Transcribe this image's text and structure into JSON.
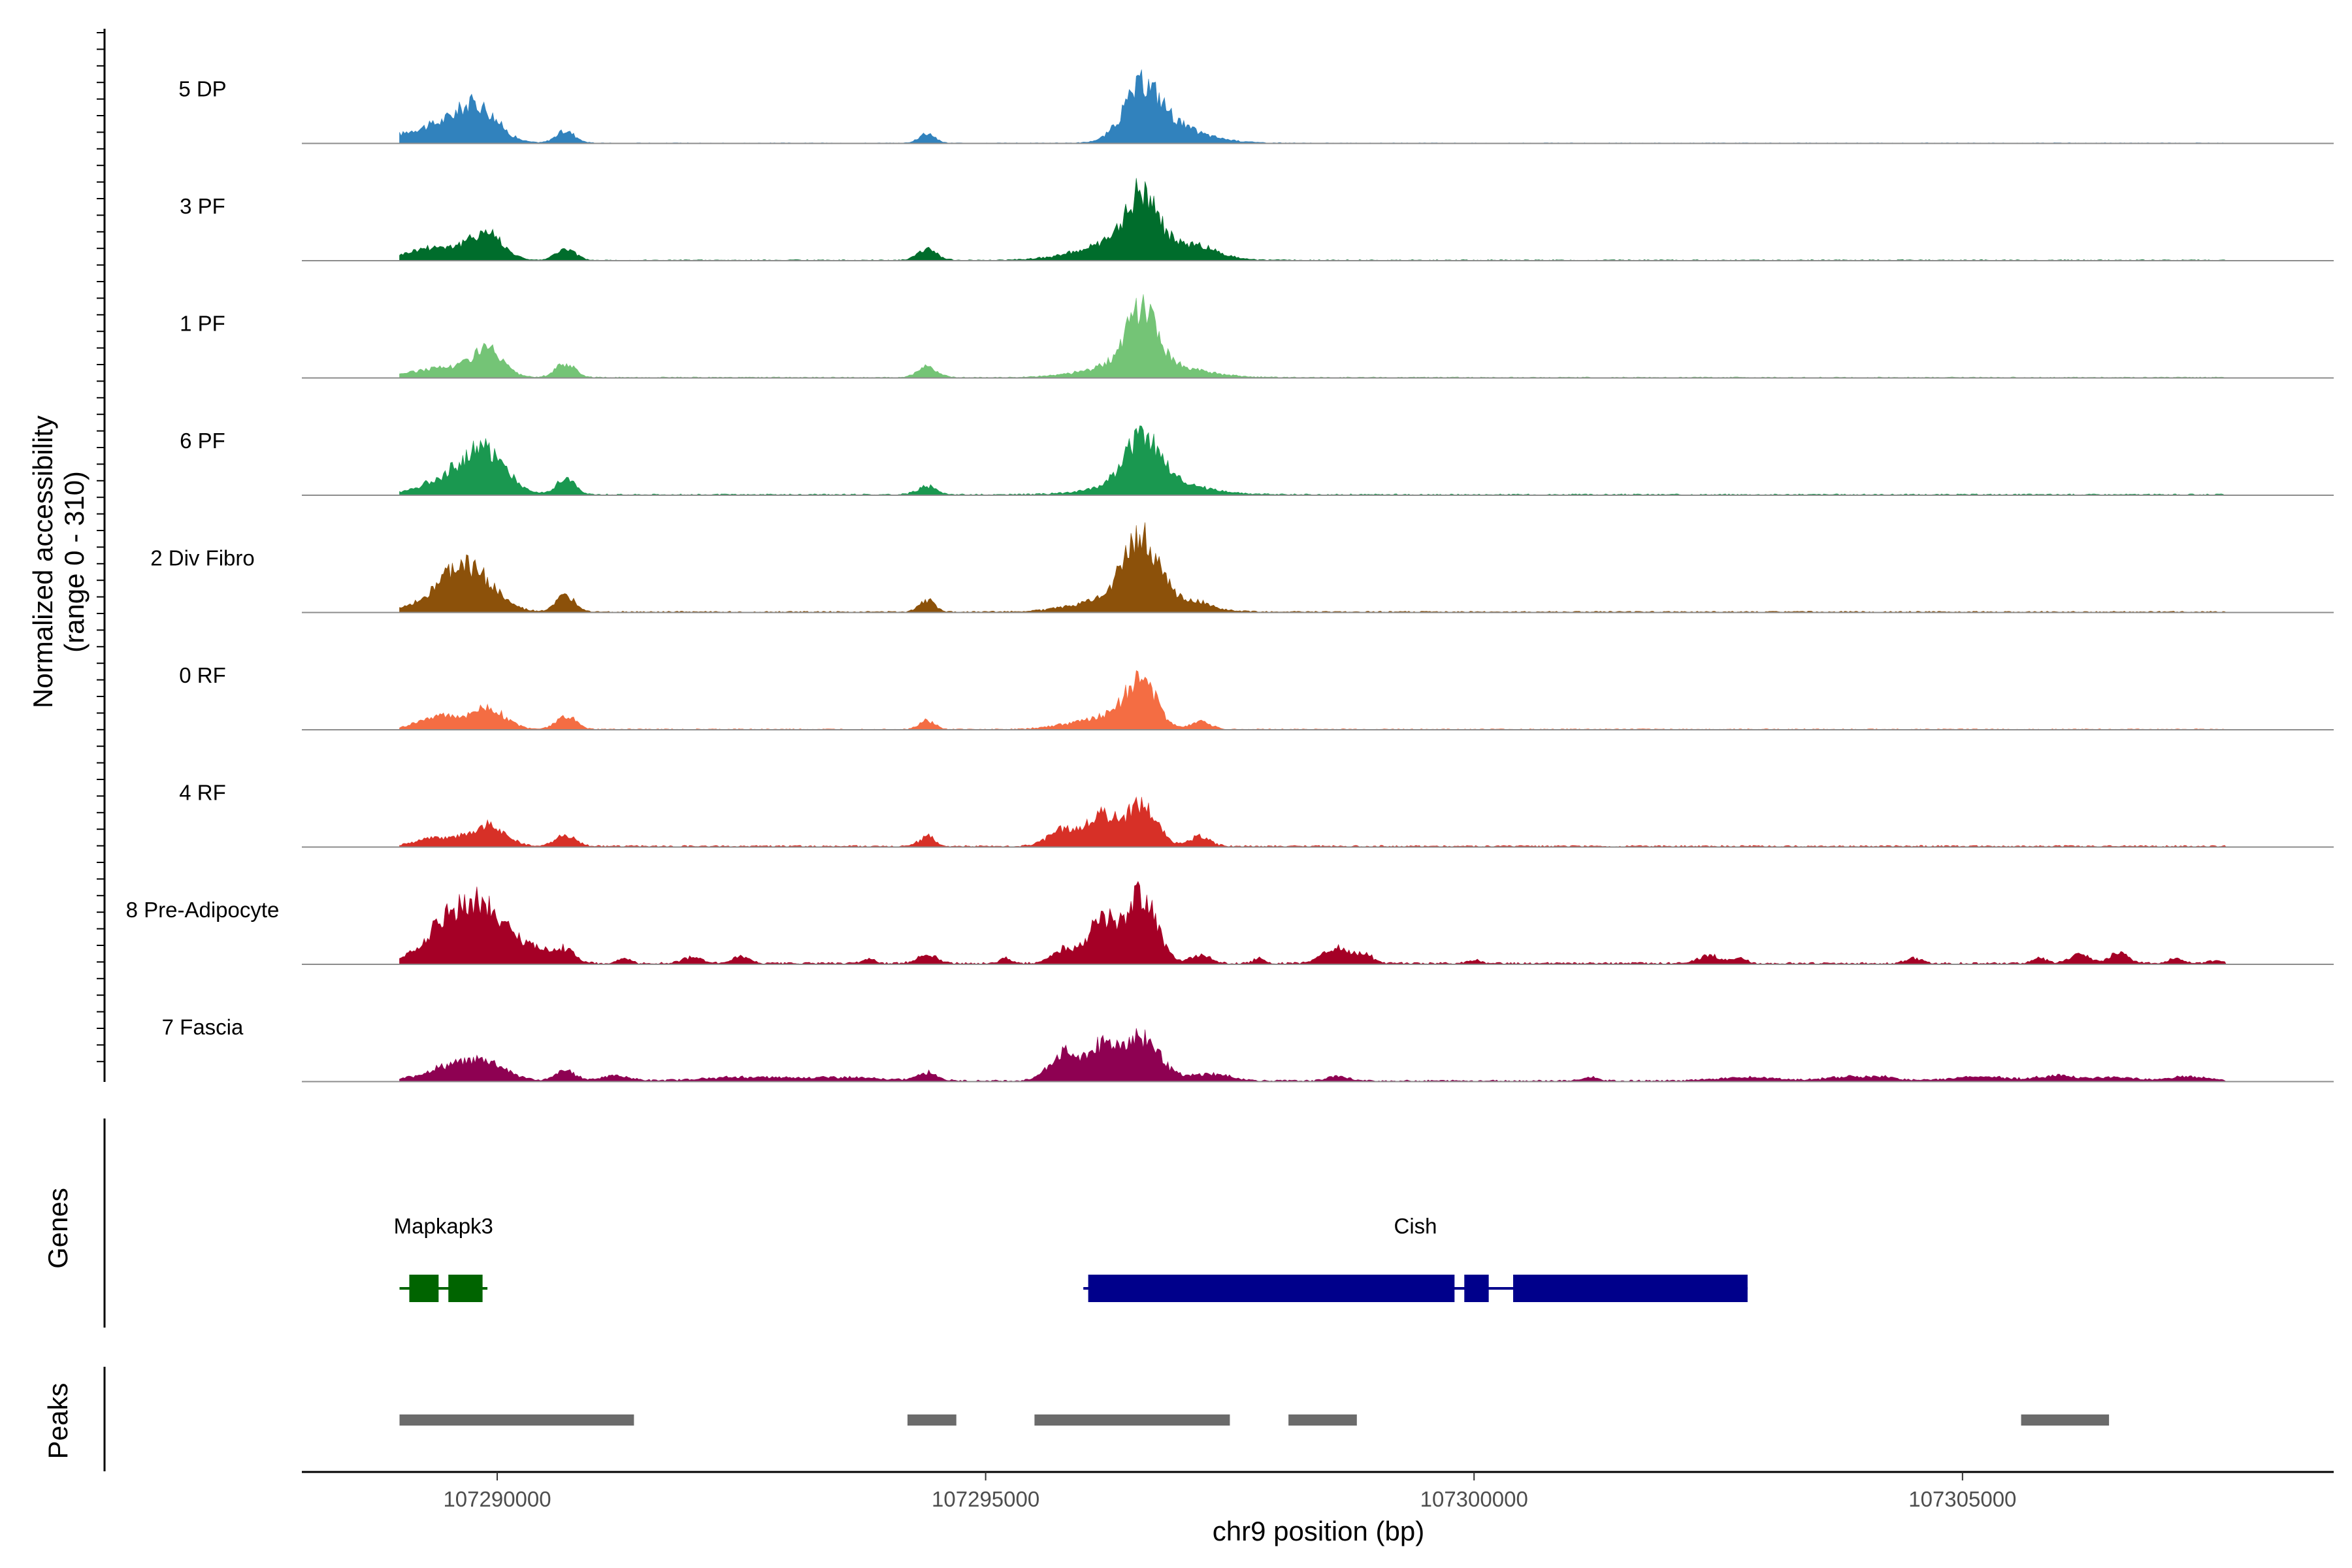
{
  "chart_data": {
    "type": "coverage",
    "chromosome": "chr9",
    "xlim": [
      107288000,
      107308800
    ],
    "y_axis_title": [
      "Normalized accessibility",
      "(range 0 - 310)"
    ],
    "y_range": [
      0,
      310
    ],
    "x_axis_title": "chr9 position (bp)",
    "x_ticks": [
      107290000,
      107295000,
      107300000,
      107305000
    ],
    "x_tick_labels": [
      "107290000",
      "107295000",
      "107300000",
      "107305000"
    ],
    "tracks": [
      {
        "name": "5 DP",
        "color": "#3182bd",
        "start": 107289000,
        "end": 107307700,
        "baseline": 2,
        "peaks": [
          [
            107289400,
            50,
            350
          ],
          [
            107289800,
            90,
            200
          ],
          [
            107290700,
            35,
            100
          ],
          [
            107294400,
            30,
            80
          ],
          [
            107296600,
            130,
            180
          ],
          [
            107296800,
            55,
            300
          ],
          [
            107297300,
            8,
            300
          ]
        ]
      },
      {
        "name": "3 PF",
        "color": "#006d2c",
        "start": 107289000,
        "end": 107307700,
        "baseline": 3,
        "peaks": [
          [
            107289400,
            40,
            300
          ],
          [
            107289900,
            75,
            160
          ],
          [
            107290700,
            32,
            100
          ],
          [
            107294400,
            32,
            100
          ],
          [
            107296600,
            150,
            150
          ],
          [
            107296500,
            60,
            450
          ],
          [
            107297200,
            25,
            200
          ]
        ]
      },
      {
        "name": "1 PF",
        "color": "#74c476",
        "start": 107289000,
        "end": 107307700,
        "baseline": 3,
        "peaks": [
          [
            107289500,
            30,
            350
          ],
          [
            107289900,
            70,
            150
          ],
          [
            107290700,
            40,
            100
          ],
          [
            107294400,
            32,
            100
          ],
          [
            107296600,
            155,
            150
          ],
          [
            107296600,
            50,
            450
          ]
        ]
      },
      {
        "name": "6 PF",
        "color": "#1a9850",
        "start": 107289000,
        "end": 107307700,
        "baseline": 4,
        "peaks": [
          [
            107289600,
            60,
            300
          ],
          [
            107289900,
            100,
            200
          ],
          [
            107290700,
            45,
            100
          ],
          [
            107294400,
            25,
            100
          ],
          [
            107296600,
            130,
            180
          ],
          [
            107296700,
            40,
            450
          ]
        ]
      },
      {
        "name": "2 Div Fibro",
        "color": "#8c510a",
        "start": 107289000,
        "end": 107307700,
        "baseline": 4,
        "peaks": [
          [
            107289700,
            110,
            250
          ],
          [
            107289500,
            35,
            300
          ],
          [
            107290700,
            45,
            100
          ],
          [
            107294400,
            35,
            80
          ],
          [
            107296600,
            170,
            180
          ],
          [
            107296500,
            50,
            450
          ],
          [
            107297200,
            15,
            100
          ]
        ]
      },
      {
        "name": "0 RF",
        "color": "#f46d43",
        "start": 107289000,
        "end": 107307700,
        "baseline": 3,
        "peaks": [
          [
            107289400,
            40,
            200
          ],
          [
            107289900,
            60,
            180
          ],
          [
            107290700,
            40,
            100
          ],
          [
            107294400,
            25,
            80
          ],
          [
            107296600,
            130,
            150
          ],
          [
            107296300,
            40,
            250
          ],
          [
            107297200,
            25,
            100
          ],
          [
            107295800,
            10,
            200
          ]
        ]
      },
      {
        "name": "4 RF",
        "color": "#d73027",
        "start": 107289000,
        "end": 107307700,
        "baseline": 5,
        "peaks": [
          [
            107289400,
            25,
            200
          ],
          [
            107289900,
            60,
            180
          ],
          [
            107290700,
            35,
            100
          ],
          [
            107294400,
            30,
            80
          ],
          [
            107295800,
            50,
            150
          ],
          [
            107296200,
            90,
            150
          ],
          [
            107296600,
            125,
            150
          ],
          [
            107297200,
            30,
            100
          ]
        ]
      },
      {
        "name": "8 Pre-Adipocyte",
        "color": "#a50026",
        "start": 107289000,
        "end": 107307700,
        "baseline": 6,
        "peaks": [
          [
            107289500,
            110,
            250
          ],
          [
            107289900,
            140,
            250
          ],
          [
            107290400,
            30,
            150
          ],
          [
            107290700,
            40,
            100
          ],
          [
            107291300,
            15,
            60
          ],
          [
            107292000,
            20,
            100
          ],
          [
            107292500,
            20,
            80
          ],
          [
            107293800,
            15,
            60
          ],
          [
            107294400,
            25,
            100
          ],
          [
            107295200,
            15,
            60
          ],
          [
            107295800,
            40,
            120
          ],
          [
            107296200,
            130,
            150
          ],
          [
            107296600,
            200,
            150
          ],
          [
            107297200,
            25,
            100
          ],
          [
            107297800,
            15,
            60
          ],
          [
            107298600,
            45,
            150
          ],
          [
            107298900,
            20,
            80
          ],
          [
            107300000,
            10,
            60
          ],
          [
            107302400,
            25,
            100
          ],
          [
            107302700,
            15,
            80
          ],
          [
            107304500,
            15,
            80
          ],
          [
            107305800,
            15,
            80
          ],
          [
            107306200,
            25,
            100
          ],
          [
            107306600,
            30,
            100
          ],
          [
            107307200,
            15,
            80
          ],
          [
            107307600,
            10,
            60
          ]
        ]
      },
      {
        "name": "7 Fascia",
        "color": "#8e0152",
        "start": 107289000,
        "end": 107307700,
        "baseline": 5,
        "peaks": [
          [
            107289500,
            40,
            250
          ],
          [
            107289900,
            50,
            200
          ],
          [
            107290700,
            30,
            100
          ],
          [
            107291200,
            15,
            150
          ],
          [
            107292500,
            10,
            400
          ],
          [
            107293500,
            10,
            400
          ],
          [
            107294400,
            25,
            100
          ],
          [
            107295800,
            80,
            150
          ],
          [
            107296200,
            100,
            150
          ],
          [
            107296600,
            130,
            180
          ],
          [
            107297300,
            20,
            200
          ],
          [
            107298600,
            15,
            100
          ],
          [
            107301200,
            10,
            80
          ],
          [
            107302800,
            10,
            300
          ],
          [
            107303800,
            12,
            200
          ],
          [
            107304200,
            10,
            150
          ],
          [
            107305200,
            12,
            300
          ],
          [
            107306000,
            15,
            200
          ],
          [
            107306600,
            10,
            200
          ],
          [
            107307300,
            12,
            200
          ]
        ]
      }
    ],
    "genes": [
      {
        "name": "Mapkapk3",
        "color": "#006400",
        "start": 107289000,
        "end": 107289900,
        "exons": [
          [
            107289100,
            107289400
          ],
          [
            107289500,
            107289850
          ]
        ]
      },
      {
        "name": "Cish",
        "color": "#00008b",
        "start": 107296000,
        "end": 107302800,
        "exons": [
          [
            107296050,
            107299800
          ],
          [
            107299900,
            107300150
          ],
          [
            107300400,
            107302800
          ]
        ]
      }
    ],
    "peaks_track": {
      "color": "#6b6b6b",
      "regions": [
        [
          107289000,
          107291400
        ],
        [
          107294200,
          107294700
        ],
        [
          107295500,
          107297500
        ],
        [
          107298100,
          107298800
        ],
        [
          107305600,
          107306500
        ]
      ]
    },
    "panel_titles": {
      "genes": "Genes",
      "peaks": "Peaks"
    }
  }
}
